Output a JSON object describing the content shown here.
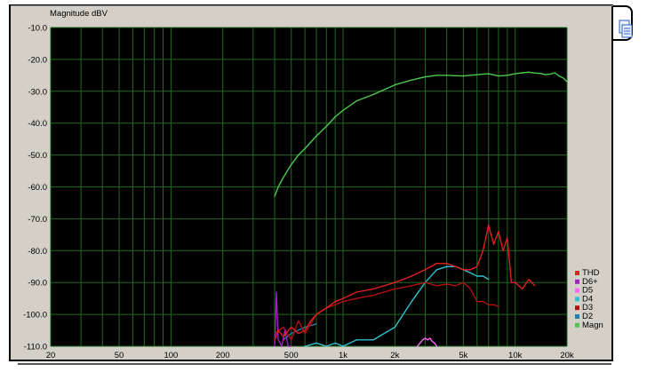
{
  "chart_data": {
    "type": "line",
    "ylabel": "Magnitude dBV",
    "xlabel": "",
    "xscale": "log",
    "xlim": [
      20,
      20000
    ],
    "ylim": [
      -110,
      -10
    ],
    "grid": true,
    "legend_position": "bottom-right",
    "y_ticks": [
      "-10.0",
      "-20.0",
      "-30.0",
      "-40.0",
      "-50.0",
      "-60.0",
      "-70.0",
      "-80.0",
      "-90.0",
      "-100.0",
      "-110.0"
    ],
    "x_ticks": [
      {
        "value": 20,
        "label": "20"
      },
      {
        "value": 50,
        "label": "50"
      },
      {
        "value": 100,
        "label": "100"
      },
      {
        "value": 200,
        "label": "200"
      },
      {
        "value": 500,
        "label": "500"
      },
      {
        "value": 1000,
        "label": "1k"
      },
      {
        "value": 2000,
        "label": "2k"
      },
      {
        "value": 5000,
        "label": "5k"
      },
      {
        "value": 10000,
        "label": "10k"
      },
      {
        "value": 20000,
        "label": "20k"
      }
    ],
    "series": [
      {
        "name": "Magn",
        "color": "#4ec94e",
        "x": [
          400,
          420,
          450,
          500,
          550,
          600,
          700,
          800,
          900,
          1000,
          1200,
          1500,
          2000,
          2500,
          3000,
          3500,
          4000,
          5000,
          6000,
          7000,
          8000,
          9000,
          10000,
          11000,
          12000,
          13000,
          14000,
          15000,
          16000,
          17000,
          18000,
          19000,
          20000
        ],
        "y": [
          -63,
          -60,
          -57,
          -53,
          -50,
          -48,
          -44,
          -41,
          -38,
          -36,
          -33,
          -31,
          -28,
          -26.5,
          -25.5,
          -25,
          -25,
          -25.2,
          -24.8,
          -24.5,
          -25.2,
          -25,
          -24.5,
          -24.2,
          -24,
          -24.3,
          -24.4,
          -24.8,
          -24.6,
          -24.2,
          -25.2,
          -25.8,
          -27
        ]
      },
      {
        "name": "THD",
        "color": "#e02020",
        "x": [
          400,
          420,
          450,
          500,
          550,
          600,
          650,
          700,
          800,
          900,
          1000,
          1200,
          1500,
          2000,
          2500,
          3000,
          3500,
          4000,
          4500,
          5000,
          5500,
          6000,
          6500,
          7000,
          7500,
          8000,
          8500,
          9000,
          9500,
          10000,
          11000,
          12000,
          13000
        ],
        "y": [
          -108,
          -105,
          -107,
          -104,
          -106,
          -105,
          -102,
          -100,
          -98,
          -96,
          -95,
          -93,
          -92,
          -90,
          -88,
          -86,
          -84,
          -84,
          -85,
          -86,
          -86,
          -85,
          -80,
          -72,
          -78,
          -74,
          -80,
          -76,
          -90,
          -90,
          -92,
          -89,
          -91
        ]
      },
      {
        "name": "D6+",
        "color": "#a020c0",
        "x": [
          400,
          410,
          420,
          440,
          460,
          480,
          500
        ],
        "y": [
          -110,
          -93,
          -108,
          -110,
          -105,
          -110,
          -110
        ]
      },
      {
        "name": "D5",
        "color": "#ff66ff",
        "x": [
          2700,
          2800,
          2900,
          3000,
          3100,
          3200,
          3300,
          3400,
          3500
        ],
        "y": [
          -110,
          -109,
          -108,
          -107.5,
          -108,
          -107.5,
          -108.5,
          -109,
          -110
        ]
      },
      {
        "name": "D4",
        "color": "#30c0d0",
        "x": [
          600,
          700,
          800,
          900,
          1000,
          1200,
          1500,
          2000,
          2500,
          3000,
          3500,
          4000,
          4500,
          5000,
          5500,
          6000,
          6500,
          7000
        ],
        "y": [
          -110,
          -109,
          -110,
          -109,
          -110,
          -108,
          -108,
          -104,
          -96,
          -90,
          -86,
          -85,
          -85,
          -86,
          -87,
          -88,
          -88,
          -89
        ]
      },
      {
        "name": "D3",
        "color": "#b01010",
        "x": [
          400,
          450,
          500,
          550,
          600,
          700,
          800,
          900,
          1000,
          1200,
          1500,
          2000,
          2500,
          3000,
          3500,
          4000,
          4500,
          5000,
          5500,
          6000,
          6500,
          7000,
          7500,
          8000
        ],
        "y": [
          -106,
          -104,
          -108,
          -102,
          -106,
          -100,
          -98,
          -97,
          -96,
          -95,
          -94,
          -92,
          -91,
          -90,
          -91,
          -90.5,
          -91,
          -90,
          -92,
          -96,
          -96,
          -97,
          -97,
          -97.5
        ]
      },
      {
        "name": "D2",
        "color": "#2080b0",
        "x": [
          450,
          500,
          600,
          700
        ],
        "y": [
          -108,
          -106,
          -104,
          -103
        ]
      },
      {
        "name": "Magn",
        "color": "#4ec94e",
        "legend_only": true,
        "x": [],
        "y": []
      }
    ],
    "legend": [
      "THD",
      "D6+",
      "D5",
      "D4",
      "D3",
      "D2",
      "Magn"
    ]
  }
}
